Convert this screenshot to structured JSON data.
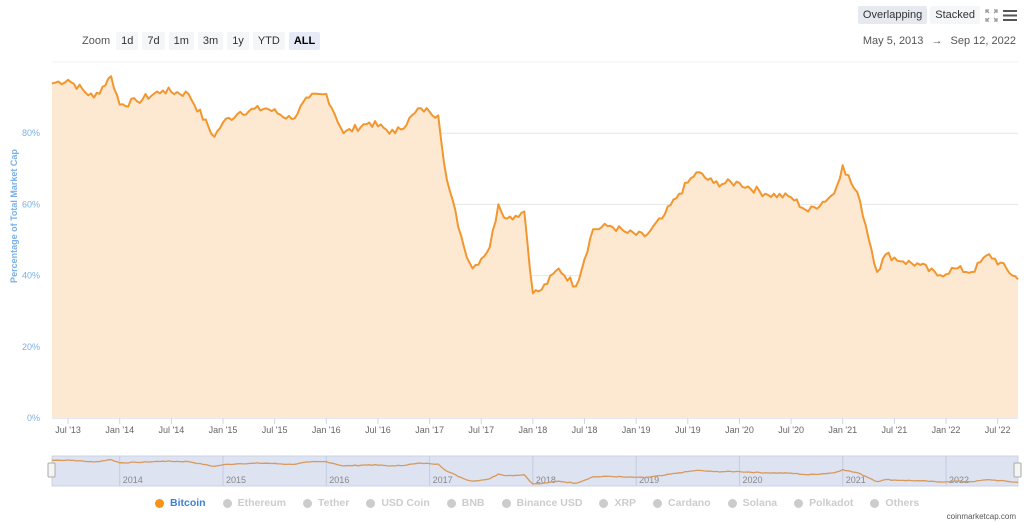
{
  "toolbar": {
    "overlapping_label": "Overlapping",
    "stacked_label": "Stacked",
    "fullscreen_icon": "fullscreen-icon",
    "menu_icon": "hamburger-menu-icon"
  },
  "date_range": {
    "from": "May 5, 2013",
    "arrow": "→",
    "to": "Sep 12, 2022"
  },
  "zoom": {
    "label": "Zoom",
    "options": [
      "1d",
      "7d",
      "1m",
      "3m",
      "1y",
      "YTD",
      "ALL"
    ],
    "selected": "ALL"
  },
  "legend": [
    {
      "name": "Bitcoin",
      "active": true
    },
    {
      "name": "Ethereum",
      "active": false
    },
    {
      "name": "Tether",
      "active": false
    },
    {
      "name": "USD Coin",
      "active": false
    },
    {
      "name": "BNB",
      "active": false
    },
    {
      "name": "Binance USD",
      "active": false
    },
    {
      "name": "XRP",
      "active": false
    },
    {
      "name": "Cardano",
      "active": false
    },
    {
      "name": "Solana",
      "active": false
    },
    {
      "name": "Polkadot",
      "active": false
    },
    {
      "name": "Others",
      "active": false
    }
  ],
  "credit": "coinmarketcap.com",
  "colors": {
    "series": "#f7931a",
    "fill": "#fde9d2",
    "axis_text": "#7ab0e8",
    "navigator_bg": "#dde3f1"
  },
  "chart_data": {
    "type": "area",
    "title": "",
    "xlabel": "",
    "ylabel": "Percentage of Total Market Cap",
    "ylim": [
      0,
      100
    ],
    "yticks": [
      "0%",
      "20%",
      "40%",
      "60%",
      "80%"
    ],
    "xticks": [
      "Jul '13",
      "Jan '14",
      "Jul '14",
      "Jan '15",
      "Jul '15",
      "Jan '16",
      "Jul '16",
      "Jan '17",
      "Jul '17",
      "Jan '18",
      "Jul '18",
      "Jan '19",
      "Jul '19",
      "Jan '20",
      "Jul '20",
      "Jan '21",
      "Jul '21",
      "Jan '22",
      "Jul '22"
    ],
    "navigator_ticks": [
      "2014",
      "2015",
      "2016",
      "2017",
      "2018",
      "2019",
      "2020",
      "2021",
      "2022"
    ],
    "grid": true,
    "legend_position": "bottom",
    "series": [
      {
        "name": "Bitcoin",
        "x": [
          "2013-05",
          "2013-07",
          "2013-10",
          "2013-12",
          "2014-01",
          "2014-03",
          "2014-06",
          "2014-09",
          "2014-12",
          "2015-01",
          "2015-03",
          "2015-06",
          "2015-09",
          "2015-11",
          "2016-01",
          "2016-03",
          "2016-06",
          "2016-09",
          "2016-12",
          "2017-01",
          "2017-02",
          "2017-03",
          "2017-05",
          "2017-06",
          "2017-08",
          "2017-09",
          "2017-10",
          "2017-12",
          "2018-01",
          "2018-02",
          "2018-04",
          "2018-06",
          "2018-08",
          "2018-10",
          "2018-12",
          "2019-02",
          "2019-04",
          "2019-06",
          "2019-08",
          "2019-10",
          "2020-01",
          "2020-04",
          "2020-07",
          "2020-09",
          "2020-12",
          "2021-01",
          "2021-03",
          "2021-05",
          "2021-06",
          "2021-08",
          "2021-10",
          "2021-12",
          "2022-02",
          "2022-04",
          "2022-06",
          "2022-09"
        ],
        "values": [
          94,
          95,
          90,
          96,
          88,
          89,
          92,
          91,
          79,
          83,
          86,
          87,
          84,
          90,
          91,
          80,
          83,
          80,
          87,
          86,
          85,
          67,
          48,
          42,
          48,
          60,
          56,
          58,
          35,
          36,
          42,
          37,
          53,
          54,
          52,
          51,
          56,
          63,
          69,
          66,
          66,
          63,
          62,
          58,
          63,
          71,
          61,
          41,
          46,
          44,
          43,
          40,
          42,
          41,
          46,
          39
        ]
      }
    ]
  }
}
